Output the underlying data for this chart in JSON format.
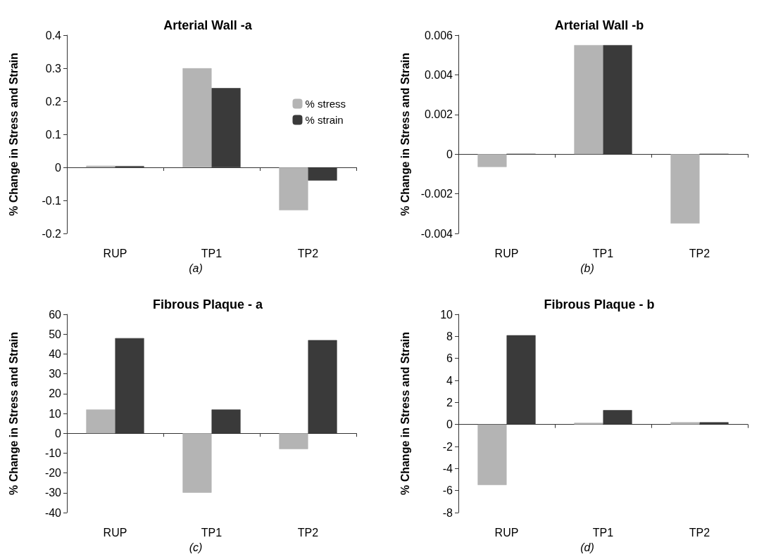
{
  "chart_data": [
    {
      "type": "bar",
      "title": "Arterial Wall -a",
      "ylabel": "% Change in Stress and Strain",
      "categories": [
        "RUP",
        "TP1",
        "TP2"
      ],
      "series": [
        {
          "name": "% stress",
          "color": "#b4b4b4",
          "values": [
            0.005,
            0.3,
            -0.13
          ]
        },
        {
          "name": "% strain",
          "color": "#3a3a3a",
          "values": [
            0.004,
            0.24,
            -0.04
          ]
        }
      ],
      "ylim": [
        -0.2,
        0.4
      ],
      "yticks": [
        -0.2,
        -0.1,
        0,
        0.1,
        0.2,
        0.3,
        0.4
      ],
      "legend": "right",
      "annotations": [
        "(a)"
      ]
    },
    {
      "type": "bar",
      "title": "Arterial Wall -b",
      "ylabel": "% Change in Stress and Strain",
      "categories": [
        "RUP",
        "TP1",
        "TP2"
      ],
      "series": [
        {
          "color": "#b4b4b4",
          "values": [
            -0.00065,
            0.0055,
            -0.0035
          ]
        },
        {
          "color": "#3a3a3a",
          "values": [
            0,
            0.0055,
            0
          ]
        }
      ],
      "ylim": [
        -0.004,
        0.006
      ],
      "yticks": [
        -0.004,
        -0.002,
        0,
        0.002,
        0.004,
        0.006
      ],
      "annotations": [
        "(b)"
      ]
    },
    {
      "type": "bar",
      "title": "Fibrous Plaque - a",
      "ylabel": "% Change in Stress and Strain",
      "categories": [
        "RUP",
        "TP1",
        "TP2"
      ],
      "series": [
        {
          "color": "#b4b4b4",
          "values": [
            12,
            -30,
            -8
          ]
        },
        {
          "color": "#3a3a3a",
          "values": [
            48,
            12,
            47
          ]
        }
      ],
      "ylim": [
        -40,
        60
      ],
      "yticks": [
        -40,
        -30,
        -20,
        -10,
        0,
        10,
        20,
        30,
        40,
        50,
        60
      ],
      "annotations": [
        "(c)"
      ]
    },
    {
      "type": "bar",
      "title": "Fibrous Plaque - b",
      "ylabel": "% Change in Stress and Strain",
      "categories": [
        "RUP",
        "TP1",
        "TP2"
      ],
      "series": [
        {
          "color": "#b4b4b4",
          "values": [
            -5.5,
            0.15,
            0.2
          ]
        },
        {
          "color": "#3a3a3a",
          "values": [
            8.1,
            1.3,
            0.2
          ]
        }
      ],
      "ylim": [
        -8,
        10
      ],
      "yticks": [
        -8,
        -6,
        -4,
        -2,
        0,
        2,
        4,
        6,
        8,
        10
      ],
      "annotations": [
        "(d)"
      ]
    }
  ]
}
